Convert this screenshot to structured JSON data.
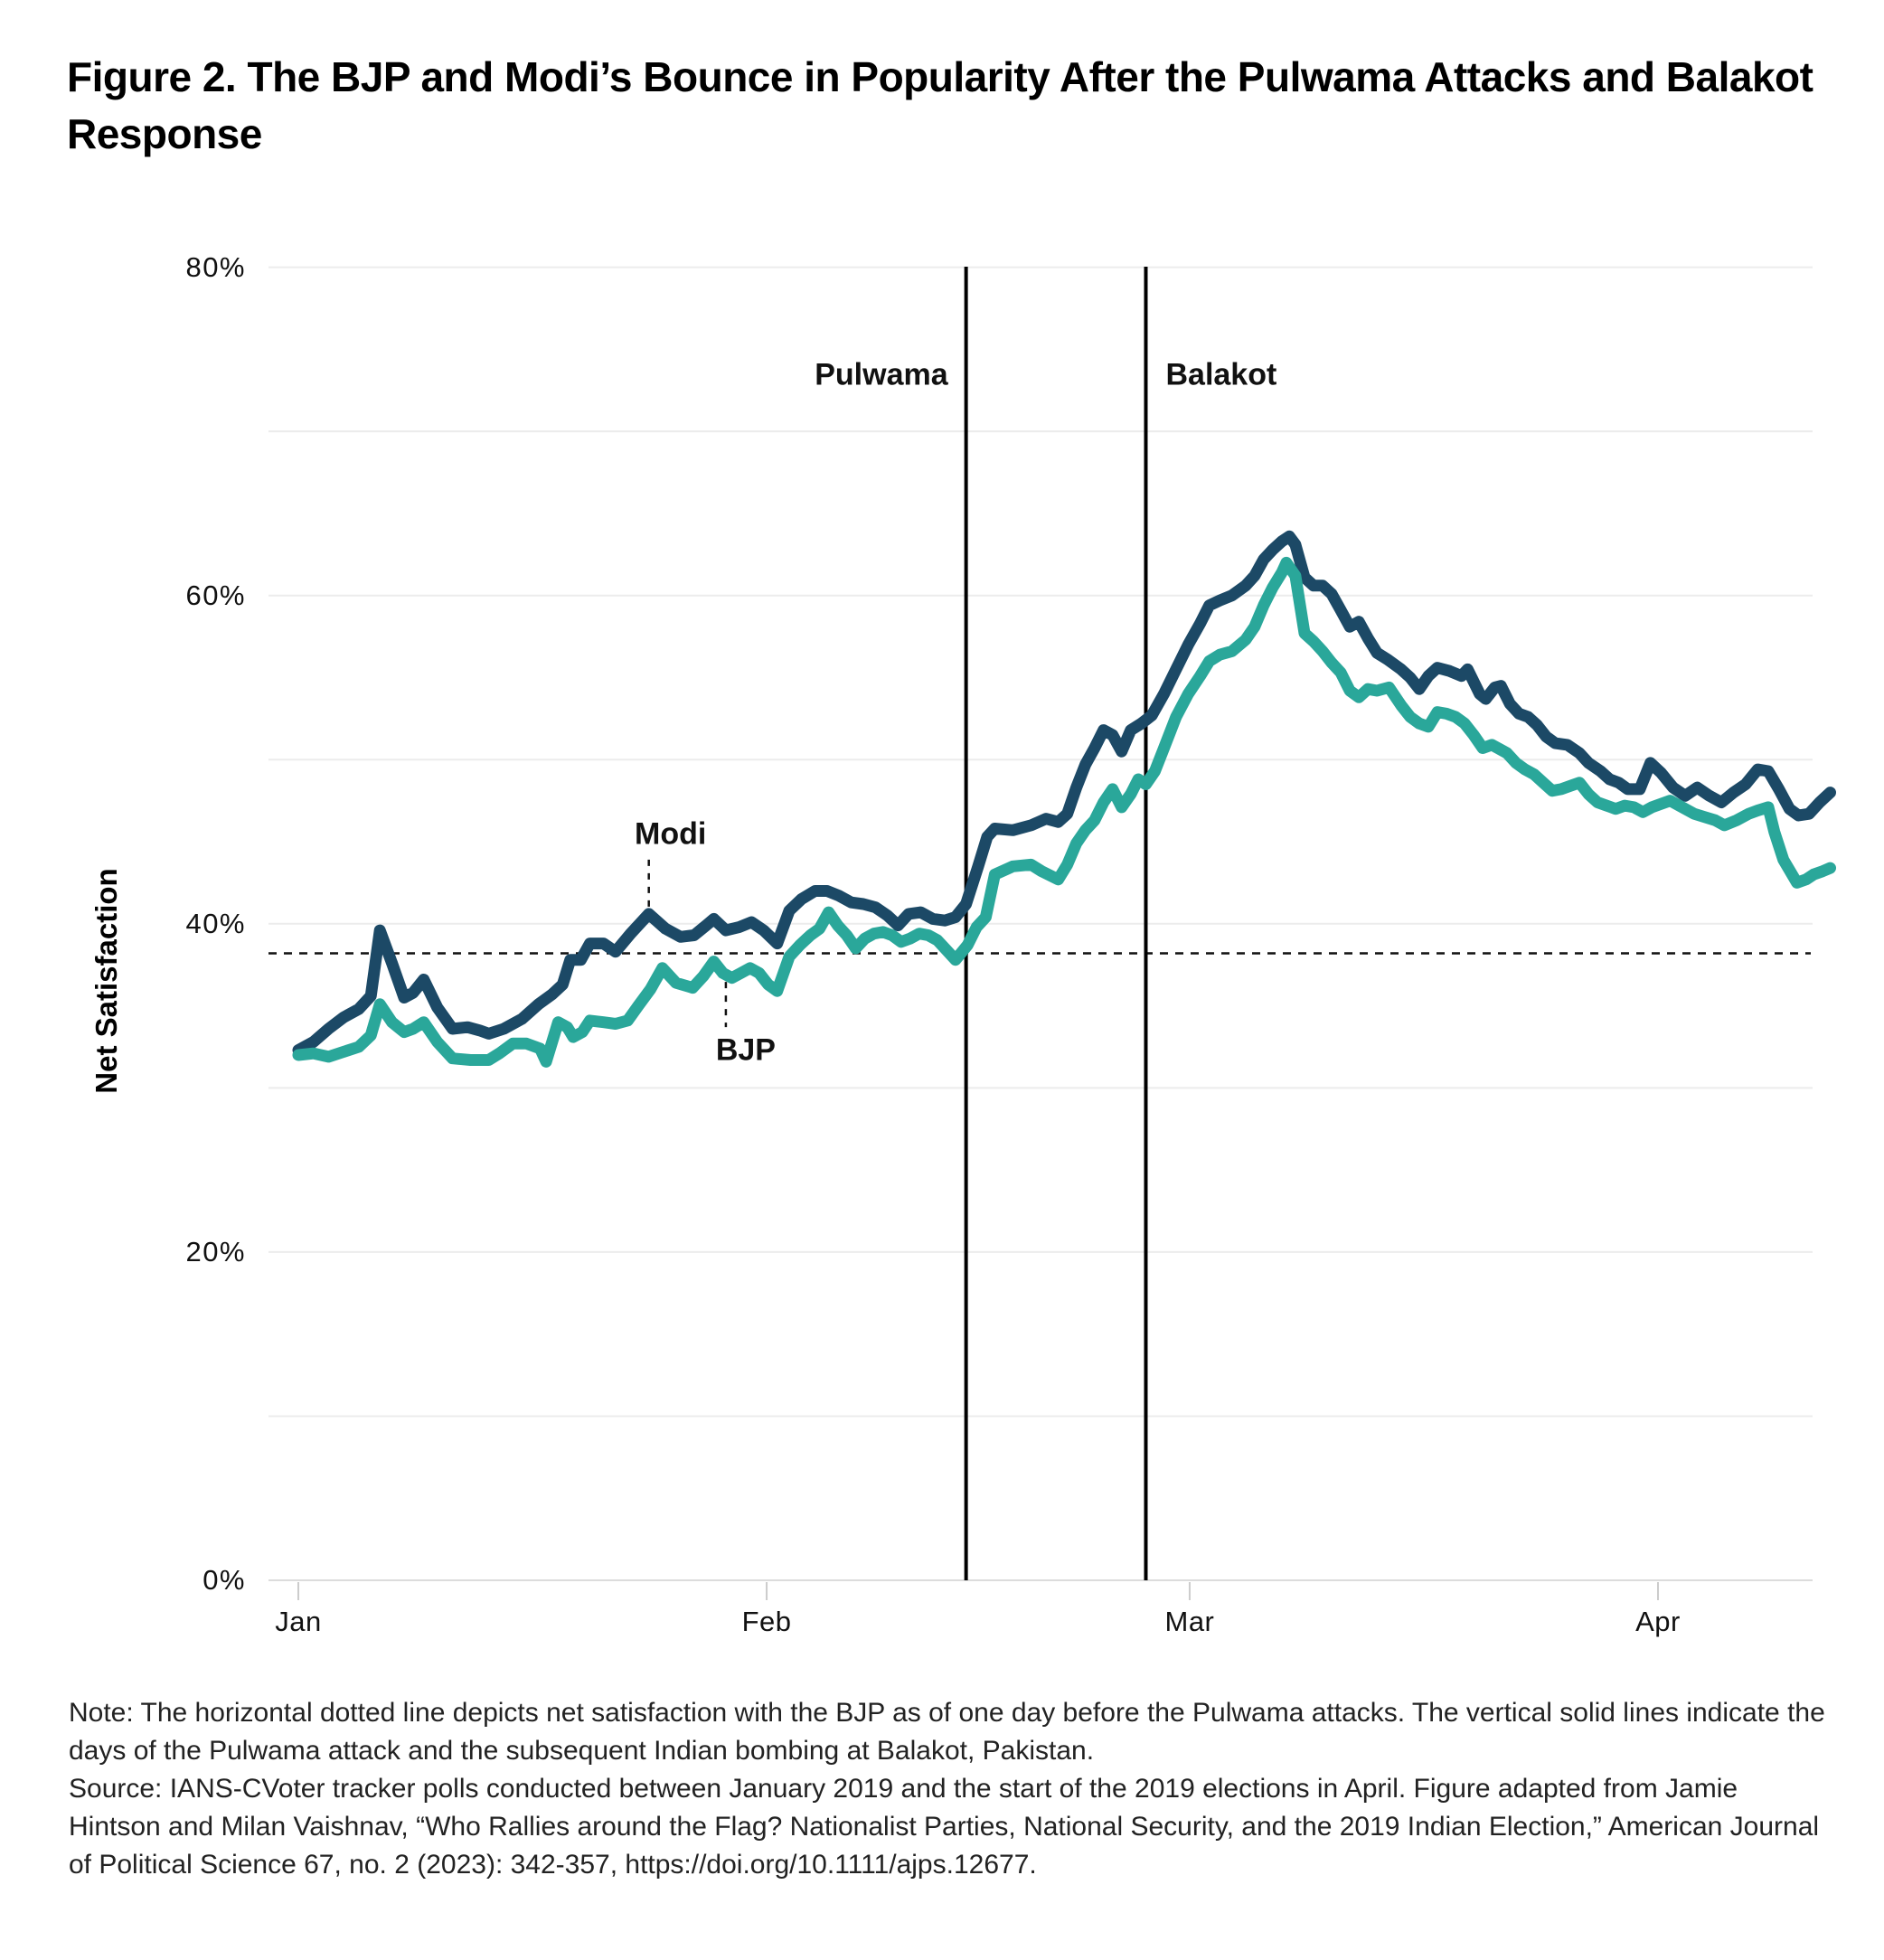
{
  "title": "Figure 2. The BJP and Modi’s Bounce in Popularity After the Pulwama Attacks and Balakot Response",
  "note": "Note: The horizontal dotted line depicts net satisfaction with the BJP as of one day before the Pulwama attacks. The vertical solid lines indicate the days of the Pulwama attack and the subsequent Indian bombing at Balakot, Pakistan.",
  "source": "Source: IANS-CVoter tracker polls conducted between January 2019 and the start of the 2019 elections in April. Figure adapted from Jamie Hintson and Milan Vaishnav, “Who Rallies around the Flag? Nationalist Parties, National Security, and the 2019 Indian Election,” American Journal of Political Science 67, no. 2 (2023): 342-357, https://doi.org/10.1111/ajps.12677.",
  "chart_data": {
    "type": "line",
    "title": "",
    "xlabel": "",
    "ylabel": "Net Satisfaction",
    "x_unit": "days since Jan 1, 2019",
    "ylim": [
      0,
      80
    ],
    "grid_step": 10,
    "grid_on": true,
    "y_ticks": [
      {
        "value": 0,
        "label": "0%"
      },
      {
        "value": 20,
        "label": "20%"
      },
      {
        "value": 40,
        "label": "40%"
      },
      {
        "value": 60,
        "label": "60%"
      },
      {
        "value": 80,
        "label": "80%"
      }
    ],
    "x_months": [
      {
        "label": "Jan",
        "day": 0
      },
      {
        "label": "Feb",
        "day": 31
      },
      {
        "label": "Mar",
        "day": 59
      },
      {
        "label": "Apr",
        "day": 90
      }
    ],
    "reference_line": {
      "value": 38.2,
      "style": "dotted",
      "meaning": "BJP net satisfaction one day before the Pulwama attacks"
    },
    "event_lines": [
      {
        "label": "Pulwama",
        "day": 44.2,
        "align": "right"
      },
      {
        "label": "Balakot",
        "day": 56.1,
        "align": "left"
      }
    ],
    "annotations": [
      {
        "label": "Modi",
        "day": 23.2,
        "side": "above",
        "dx": 24
      },
      {
        "label": "BJP",
        "day": 28.3,
        "side": "below",
        "dx": 22
      }
    ],
    "series": [
      {
        "name": "Modi",
        "color": "#1c4966",
        "points": [
          [
            0,
            32.3
          ],
          [
            1,
            32.8
          ],
          [
            2,
            33.6
          ],
          [
            3,
            34.3
          ],
          [
            4,
            34.8
          ],
          [
            4.8,
            35.6
          ],
          [
            5.4,
            39.6
          ],
          [
            6.2,
            37.6
          ],
          [
            7,
            35.5
          ],
          [
            7.6,
            35.8
          ],
          [
            8.3,
            36.6
          ],
          [
            9.2,
            34.9
          ],
          [
            10.2,
            33.6
          ],
          [
            11.2,
            33.7
          ],
          [
            12,
            33.5
          ],
          [
            12.6,
            33.3
          ],
          [
            13.6,
            33.6
          ],
          [
            14.8,
            34.2
          ],
          [
            15.9,
            35.1
          ],
          [
            16.8,
            35.7
          ],
          [
            17.5,
            36.3
          ],
          [
            18,
            37.8
          ],
          [
            18.7,
            37.8
          ],
          [
            19.3,
            38.8
          ],
          [
            20.2,
            38.8
          ],
          [
            21,
            38.3
          ],
          [
            22,
            39.4
          ],
          [
            23.2,
            40.6
          ],
          [
            24.3,
            39.7
          ],
          [
            25.3,
            39.2
          ],
          [
            26.2,
            39.3
          ],
          [
            27,
            39.9
          ],
          [
            27.5,
            40.3
          ],
          [
            28.3,
            39.6
          ],
          [
            29.2,
            39.8
          ],
          [
            30,
            40.1
          ],
          [
            30.8,
            39.6
          ],
          [
            31.7,
            38.8
          ],
          [
            32.5,
            40.8
          ],
          [
            33.3,
            41.5
          ],
          [
            34.2,
            42
          ],
          [
            35,
            42
          ],
          [
            35.8,
            41.7
          ],
          [
            36.6,
            41.3
          ],
          [
            37.4,
            41.2
          ],
          [
            38.2,
            41
          ],
          [
            39,
            40.5
          ],
          [
            39.7,
            39.9
          ],
          [
            40.4,
            40.6
          ],
          [
            41.2,
            40.7
          ],
          [
            42,
            40.3
          ],
          [
            42.8,
            40.2
          ],
          [
            43.5,
            40.4
          ],
          [
            44.2,
            41.2
          ],
          [
            45,
            43.5
          ],
          [
            45.6,
            45.3
          ],
          [
            46.1,
            45.8
          ],
          [
            47.3,
            45.7
          ],
          [
            48.5,
            46
          ],
          [
            49.5,
            46.4
          ],
          [
            50.3,
            46.2
          ],
          [
            50.9,
            46.7
          ],
          [
            51.5,
            48.3
          ],
          [
            52.1,
            49.7
          ],
          [
            52.7,
            50.7
          ],
          [
            53.3,
            51.8
          ],
          [
            53.9,
            51.5
          ],
          [
            54.5,
            50.5
          ],
          [
            55.1,
            51.8
          ],
          [
            55.8,
            52.2
          ],
          [
            56.5,
            52.7
          ],
          [
            57.3,
            54
          ],
          [
            58.1,
            55.5
          ],
          [
            58.9,
            57
          ],
          [
            59.7,
            58.3
          ],
          [
            60.3,
            59.4
          ],
          [
            61,
            59.7
          ],
          [
            61.8,
            60
          ],
          [
            62.7,
            60.6
          ],
          [
            63.3,
            61.2
          ],
          [
            63.9,
            62.2
          ],
          [
            64.5,
            62.8
          ],
          [
            65.1,
            63.3
          ],
          [
            65.6,
            63.6
          ],
          [
            66,
            63.1
          ],
          [
            66.6,
            61.1
          ],
          [
            67.2,
            60.6
          ],
          [
            67.8,
            60.6
          ],
          [
            68.4,
            60.1
          ],
          [
            69,
            59.1
          ],
          [
            69.6,
            58.1
          ],
          [
            70.2,
            58.4
          ],
          [
            70.8,
            57.4
          ],
          [
            71.4,
            56.5
          ],
          [
            72.1,
            56.1
          ],
          [
            73,
            55.5
          ],
          [
            73.6,
            55
          ],
          [
            74.2,
            54.3
          ],
          [
            74.8,
            55.1
          ],
          [
            75.4,
            55.6
          ],
          [
            76.2,
            55.4
          ],
          [
            77,
            55.1
          ],
          [
            77.4,
            55.5
          ],
          [
            78.2,
            54
          ],
          [
            78.6,
            53.7
          ],
          [
            79.2,
            54.4
          ],
          [
            79.6,
            54.5
          ],
          [
            80.2,
            53.4
          ],
          [
            80.8,
            52.8
          ],
          [
            81.4,
            52.6
          ],
          [
            82,
            52.1
          ],
          [
            82.6,
            51.4
          ],
          [
            83.2,
            51
          ],
          [
            84,
            50.9
          ],
          [
            84.8,
            50.4
          ],
          [
            85.4,
            49.8
          ],
          [
            86.2,
            49.3
          ],
          [
            86.8,
            48.8
          ],
          [
            87.4,
            48.6
          ],
          [
            88,
            48.2
          ],
          [
            88.8,
            48.2
          ],
          [
            89.5,
            49.8
          ],
          [
            90.2,
            49.2
          ],
          [
            91,
            48.3
          ],
          [
            91.8,
            47.8
          ],
          [
            92.6,
            48.3
          ],
          [
            93.4,
            47.8
          ],
          [
            94.2,
            47.4
          ],
          [
            95,
            48
          ],
          [
            95.8,
            48.5
          ],
          [
            96.6,
            49.4
          ],
          [
            97.3,
            49.3
          ],
          [
            98,
            48.2
          ],
          [
            98.7,
            47
          ],
          [
            99.3,
            46.6
          ],
          [
            100,
            46.7
          ],
          [
            100.7,
            47.4
          ],
          [
            101.4,
            48
          ]
        ]
      },
      {
        "name": "BJP",
        "color": "#2aa79a",
        "points": [
          [
            0,
            32
          ],
          [
            1,
            32.1
          ],
          [
            2,
            31.9
          ],
          [
            3,
            32.2
          ],
          [
            4,
            32.5
          ],
          [
            4.8,
            33.2
          ],
          [
            5.4,
            35.1
          ],
          [
            6.2,
            34
          ],
          [
            7,
            33.4
          ],
          [
            7.6,
            33.6
          ],
          [
            8.3,
            34
          ],
          [
            9.2,
            32.8
          ],
          [
            10.2,
            31.8
          ],
          [
            11.4,
            31.7
          ],
          [
            12.6,
            31.7
          ],
          [
            13.3,
            32.1
          ],
          [
            14.2,
            32.7
          ],
          [
            15.1,
            32.7
          ],
          [
            16,
            32.4
          ],
          [
            16.4,
            31.6
          ],
          [
            17.2,
            34
          ],
          [
            17.8,
            33.7
          ],
          [
            18.2,
            33.1
          ],
          [
            18.8,
            33.4
          ],
          [
            19.3,
            34.1
          ],
          [
            20.2,
            34
          ],
          [
            21,
            33.9
          ],
          [
            21.8,
            34.1
          ],
          [
            22.5,
            35
          ],
          [
            23.3,
            36
          ],
          [
            24.1,
            37.3
          ],
          [
            25,
            36.4
          ],
          [
            26.1,
            36.1
          ],
          [
            26.8,
            36.8
          ],
          [
            27.5,
            37.7
          ],
          [
            28.1,
            37
          ],
          [
            28.7,
            36.7
          ],
          [
            29.3,
            37
          ],
          [
            29.9,
            37.3
          ],
          [
            30.5,
            37
          ],
          [
            31.1,
            36.3
          ],
          [
            31.7,
            35.9
          ],
          [
            32.5,
            38
          ],
          [
            33.2,
            38.7
          ],
          [
            33.9,
            39.3
          ],
          [
            34.5,
            39.7
          ],
          [
            35.1,
            40.7
          ],
          [
            35.7,
            39.9
          ],
          [
            36.3,
            39.3
          ],
          [
            36.9,
            38.5
          ],
          [
            37.5,
            39.1
          ],
          [
            38.1,
            39.4
          ],
          [
            38.7,
            39.5
          ],
          [
            39.3,
            39.3
          ],
          [
            39.9,
            38.9
          ],
          [
            40.5,
            39.1
          ],
          [
            41.1,
            39.4
          ],
          [
            41.7,
            39.3
          ],
          [
            42.3,
            39
          ],
          [
            42.9,
            38.4
          ],
          [
            43.5,
            37.8
          ],
          [
            44.3,
            38.7
          ],
          [
            44.9,
            39.8
          ],
          [
            45.5,
            40.4
          ],
          [
            46.1,
            43
          ],
          [
            47.3,
            43.5
          ],
          [
            48.5,
            43.6
          ],
          [
            49.2,
            43.2
          ],
          [
            50.3,
            42.7
          ],
          [
            50.9,
            43.6
          ],
          [
            51.5,
            44.9
          ],
          [
            52.1,
            45.7
          ],
          [
            52.7,
            46.3
          ],
          [
            53.3,
            47.4
          ],
          [
            53.9,
            48.2
          ],
          [
            54.5,
            47.1
          ],
          [
            55.1,
            47.9
          ],
          [
            55.6,
            48.8
          ],
          [
            56.1,
            48.5
          ],
          [
            56.7,
            49.3
          ],
          [
            57.3,
            50.7
          ],
          [
            58.1,
            52.6
          ],
          [
            58.9,
            54
          ],
          [
            59.7,
            55.1
          ],
          [
            60.3,
            56
          ],
          [
            61,
            56.4
          ],
          [
            61.8,
            56.6
          ],
          [
            62.7,
            57.3
          ],
          [
            63.3,
            58.1
          ],
          [
            63.9,
            59.4
          ],
          [
            64.5,
            60.5
          ],
          [
            65.1,
            61.4
          ],
          [
            65.4,
            62
          ],
          [
            66,
            61.2
          ],
          [
            66.6,
            57.7
          ],
          [
            67.2,
            57.2
          ],
          [
            67.8,
            56.6
          ],
          [
            68.4,
            55.9
          ],
          [
            69,
            55.3
          ],
          [
            69.6,
            54.2
          ],
          [
            70.2,
            53.8
          ],
          [
            70.8,
            54.3
          ],
          [
            71.4,
            54.2
          ],
          [
            72.2,
            54.4
          ],
          [
            73,
            53.3
          ],
          [
            73.6,
            52.6
          ],
          [
            74.2,
            52.2
          ],
          [
            74.8,
            52
          ],
          [
            75.4,
            52.9
          ],
          [
            76,
            52.8
          ],
          [
            76.6,
            52.6
          ],
          [
            77.2,
            52.2
          ],
          [
            77.8,
            51.5
          ],
          [
            78.4,
            50.7
          ],
          [
            79,
            50.9
          ],
          [
            79.4,
            50.7
          ],
          [
            80,
            50.4
          ],
          [
            80.6,
            49.8
          ],
          [
            81.2,
            49.4
          ],
          [
            81.8,
            49.1
          ],
          [
            82.4,
            48.6
          ],
          [
            83,
            48.1
          ],
          [
            83.6,
            48.2
          ],
          [
            84.2,
            48.4
          ],
          [
            84.8,
            48.6
          ],
          [
            85.4,
            47.9
          ],
          [
            86,
            47.4
          ],
          [
            86.6,
            47.2
          ],
          [
            87.2,
            47
          ],
          [
            87.8,
            47.2
          ],
          [
            88.4,
            47.1
          ],
          [
            89,
            46.8
          ],
          [
            89.6,
            47.1
          ],
          [
            90.2,
            47.3
          ],
          [
            90.8,
            47.5
          ],
          [
            91.4,
            47.2
          ],
          [
            92.4,
            46.7
          ],
          [
            93.1,
            46.5
          ],
          [
            93.8,
            46.3
          ],
          [
            94.4,
            46
          ],
          [
            95.2,
            46.3
          ],
          [
            96,
            46.7
          ],
          [
            96.6,
            46.9
          ],
          [
            97.3,
            47.1
          ],
          [
            97.7,
            45.6
          ],
          [
            98.3,
            43.9
          ],
          [
            99.2,
            42.5
          ],
          [
            99.8,
            42.7
          ],
          [
            100.3,
            43
          ],
          [
            100.9,
            43.2
          ],
          [
            101.4,
            43.4
          ]
        ]
      }
    ]
  }
}
